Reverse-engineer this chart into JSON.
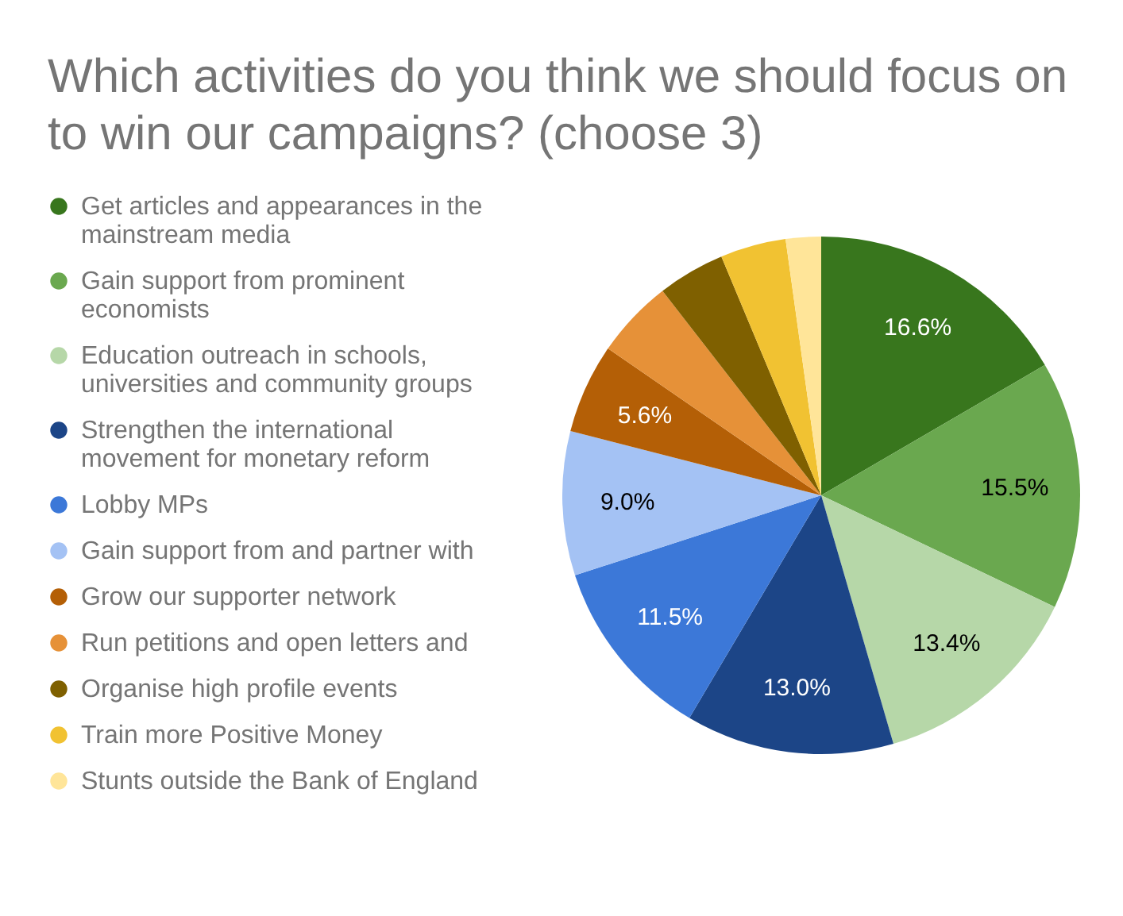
{
  "chart_data": {
    "type": "pie",
    "title": "Which activities do you think we should focus on to win our campaigns? (choose 3)",
    "categories": [
      "Get articles and appearances in the mainstream media",
      "Gain support from prominent economists",
      "Education outreach in schools, universities and community groups",
      "Strengthen the international movement for monetary reform",
      "Lobby MPs",
      "Gain support from and partner with",
      "Grow our supporter network",
      "Run petitions and open letters and",
      "Organise high profile events",
      "Train more Positive Money",
      "Stunts outside the Bank of England"
    ],
    "values": [
      16.6,
      15.5,
      13.4,
      13.0,
      11.5,
      9.0,
      5.6,
      4.9,
      4.2,
      4.1,
      2.2
    ],
    "colors": [
      "#38761d",
      "#6aa84f",
      "#b6d7a8",
      "#1c4587",
      "#3c78d8",
      "#a4c2f4",
      "#b45f06",
      "#e69138",
      "#7f6000",
      "#f1c232",
      "#ffe599"
    ],
    "value_labels": [
      "16.6%",
      "15.5%",
      "13.4%",
      "13.0%",
      "11.5%",
      "9.0%",
      "5.6%",
      null,
      null,
      null,
      null
    ],
    "legend": "left"
  }
}
